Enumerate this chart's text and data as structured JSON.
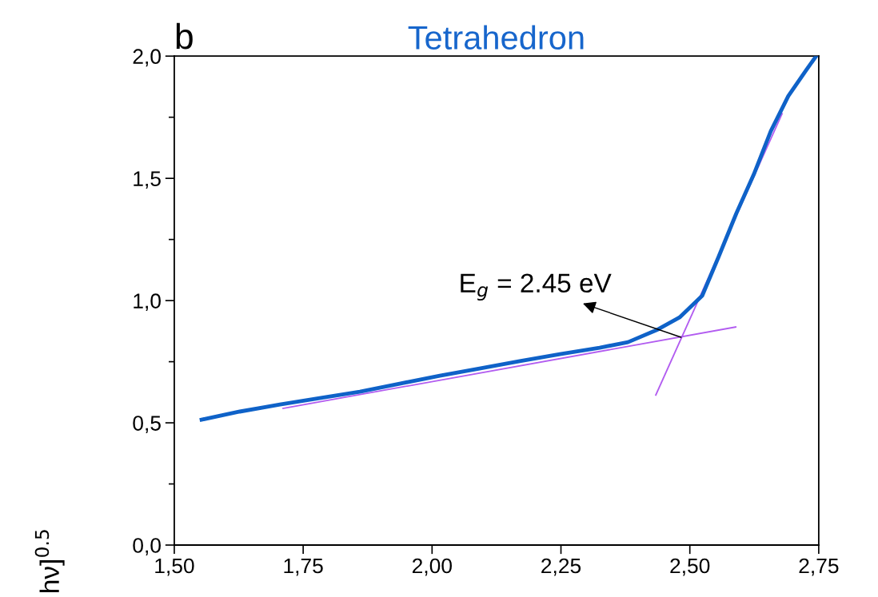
{
  "chart_data": {
    "type": "line",
    "title": "Tetrahedron",
    "ylabel": "hν]$^{0.5}$",
    "annotations": [
      "b",
      {
        "text": "E$_{g}$ = 2.45 eV",
        "x": 2.483,
        "y": 0.85
      }
    ],
    "series": [
      {
        "color": "#0f62c8",
        "x": [
          1.553,
          1.627,
          1.705,
          1.782,
          1.86,
          1.937,
          2.015,
          2.092,
          2.17,
          2.248,
          2.325,
          2.38,
          2.438,
          2.48,
          2.524,
          2.556,
          2.59,
          2.624,
          2.657,
          2.691,
          2.725,
          2.745
        ],
        "values": [
          0.513,
          0.546,
          0.575,
          0.601,
          0.627,
          0.66,
          0.693,
          0.722,
          0.752,
          0.781,
          0.807,
          0.83,
          0.882,
          0.931,
          1.02,
          1.18,
          1.356,
          1.516,
          1.693,
          1.837,
          1.941,
          2.0
        ]
      },
      {
        "color": "#b25cf0",
        "x": [
          1.711,
          2.589
        ],
        "values": [
          0.559,
          0.892
        ]
      },
      {
        "color": "#b25cf0",
        "x": [
          2.434,
          2.679
        ],
        "values": [
          0.614,
          1.765
        ]
      }
    ],
    "xlim": [
      1.5,
      2.75
    ],
    "ylim": [
      0,
      2
    ],
    "xticks": [
      {
        "value": 1.5,
        "label": "1,50"
      },
      {
        "value": 1.75,
        "label": "1,75"
      },
      {
        "value": 2.0,
        "label": "2,00"
      },
      {
        "value": 2.25,
        "label": "2,25"
      },
      {
        "value": 2.5,
        "label": "2,50"
      },
      {
        "value": 2.75,
        "label": "2,75"
      }
    ],
    "yticks": [
      {
        "value": 0,
        "label": "0,0"
      },
      {
        "value": 0.5,
        "label": "0,5"
      },
      {
        "value": 1.0,
        "label": "1,0"
      },
      {
        "value": 1.5,
        "label": "1,5"
      },
      {
        "value": 2.0,
        "label": "2,0"
      }
    ],
    "grid": false,
    "legend": false
  }
}
